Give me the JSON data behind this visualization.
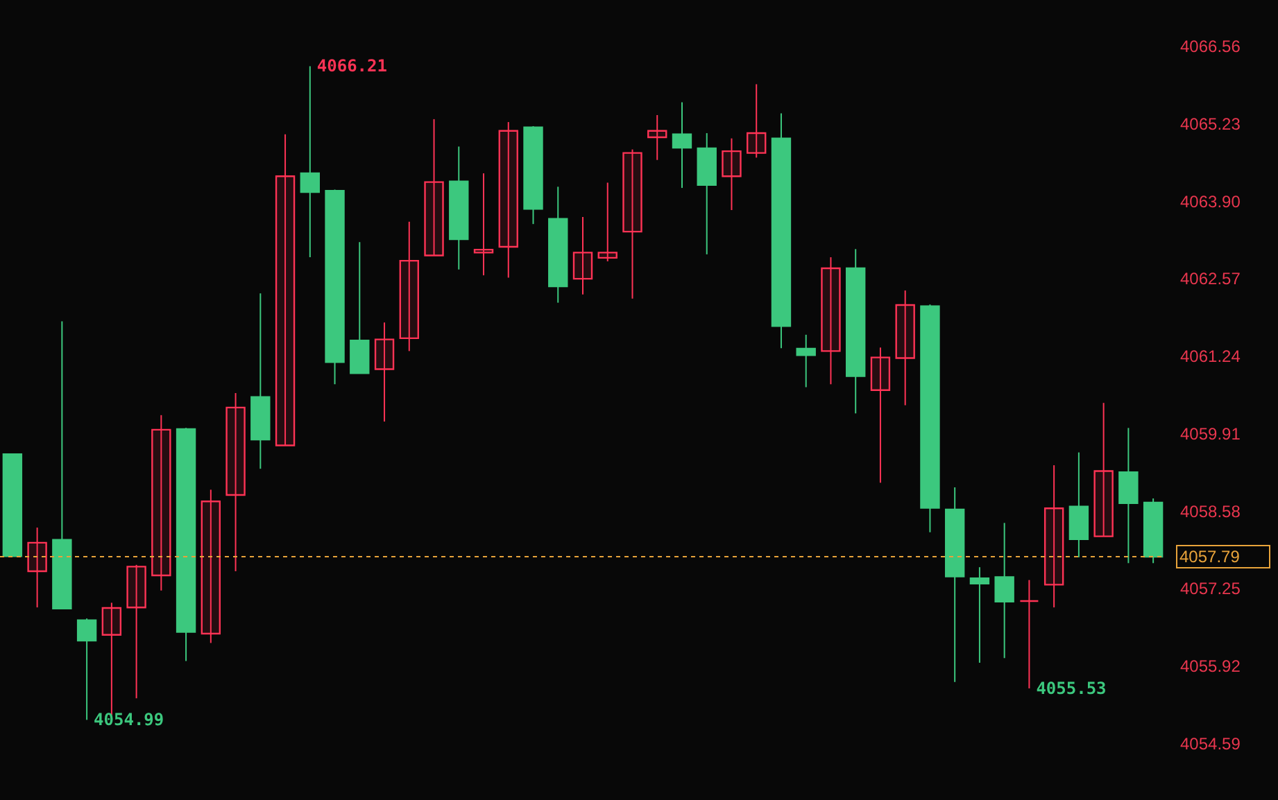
{
  "chart_data": {
    "type": "candlestick",
    "categories": [
      null,
      null,
      null,
      null,
      null,
      null,
      null,
      null,
      null,
      null,
      null,
      null,
      null,
      null,
      null,
      null,
      null,
      null,
      null,
      null,
      null,
      null,
      null,
      null,
      null,
      null,
      null,
      null,
      null,
      null,
      null,
      null,
      null,
      null,
      null,
      null,
      null,
      null,
      null,
      null,
      null,
      null,
      null,
      null,
      null,
      null,
      null
    ],
    "ohlc": [
      [
        4059.55,
        4059.55,
        4057.8,
        4057.8
      ],
      [
        4057.54,
        4058.29,
        4056.92,
        4058.03
      ],
      [
        4058.08,
        4061.83,
        4056.9,
        4056.9
      ],
      [
        4056.7,
        4056.73,
        4054.99,
        4056.35
      ],
      [
        4056.45,
        4057.0,
        4055.07,
        4056.91
      ],
      [
        4056.92,
        4057.65,
        4055.36,
        4057.62
      ],
      [
        4057.47,
        4060.22,
        4057.21,
        4059.97
      ],
      [
        4059.98,
        4060.0,
        4056.0,
        4056.5
      ],
      [
        4056.47,
        4058.94,
        4056.31,
        4058.74
      ],
      [
        4058.85,
        4060.6,
        4057.54,
        4060.35
      ],
      [
        4060.53,
        4062.31,
        4059.3,
        4059.8
      ],
      [
        4059.7,
        4065.04,
        4059.7,
        4064.32
      ],
      [
        4064.37,
        4066.21,
        4062.93,
        4064.05
      ],
      [
        4064.07,
        4064.09,
        4060.75,
        4061.13
      ],
      [
        4061.5,
        4063.19,
        4060.94,
        4060.94
      ],
      [
        4061.01,
        4061.81,
        4060.11,
        4061.52
      ],
      [
        4061.54,
        4063.54,
        4061.32,
        4062.87
      ],
      [
        4062.96,
        4065.3,
        4062.96,
        4064.22
      ],
      [
        4064.23,
        4064.83,
        4062.72,
        4063.24
      ],
      [
        4063.01,
        4064.37,
        4062.62,
        4063.06
      ],
      [
        4063.11,
        4065.25,
        4062.58,
        4065.1
      ],
      [
        4065.16,
        4065.18,
        4063.5,
        4063.76
      ],
      [
        4063.59,
        4064.14,
        4062.15,
        4062.43
      ],
      [
        4062.56,
        4063.62,
        4062.29,
        4063.01
      ],
      [
        4062.92,
        4064.21,
        4062.86,
        4063.01
      ],
      [
        4063.37,
        4064.78,
        4062.22,
        4064.72
      ],
      [
        4064.99,
        4065.37,
        4064.6,
        4065.1
      ],
      [
        4065.04,
        4065.59,
        4064.12,
        4064.81
      ],
      [
        4064.8,
        4065.06,
        4062.98,
        4064.17
      ],
      [
        4064.32,
        4064.97,
        4063.74,
        4064.75
      ],
      [
        4064.72,
        4065.9,
        4064.64,
        4065.06
      ],
      [
        4064.97,
        4065.4,
        4061.37,
        4061.75
      ],
      [
        4061.36,
        4061.6,
        4060.7,
        4061.25
      ],
      [
        4061.32,
        4062.93,
        4060.75,
        4062.74
      ],
      [
        4062.74,
        4063.07,
        4060.25,
        4060.89
      ],
      [
        4060.65,
        4061.38,
        4059.06,
        4061.21
      ],
      [
        4061.2,
        4062.36,
        4060.39,
        4062.11
      ],
      [
        4062.09,
        4062.12,
        4058.21,
        4058.63
      ],
      [
        4058.6,
        4058.98,
        4055.64,
        4057.45
      ],
      [
        4057.42,
        4057.61,
        4055.97,
        4057.33
      ],
      [
        4057.44,
        4058.37,
        4056.05,
        4057.02
      ],
      [
        4057.03,
        4057.39,
        4055.53,
        4057.03
      ],
      [
        4057.31,
        4059.36,
        4056.92,
        4058.62
      ],
      [
        4058.65,
        4059.58,
        4057.78,
        4058.09
      ],
      [
        4058.14,
        4060.43,
        4058.14,
        4059.26
      ],
      [
        4059.24,
        4060.0,
        4057.68,
        4058.71
      ],
      [
        4058.72,
        4058.79,
        4057.68,
        4057.79
      ]
    ],
    "colors": [
      "#3cc87e",
      "#ff3355",
      "#3cc87e",
      "#3cc87e",
      "#ff3355",
      "#ff3355",
      "#ff3355",
      "#3cc87e",
      "#ff3355",
      "#ff3355",
      "#3cc87e",
      "#ff3355",
      "#3cc87e",
      "#3cc87e",
      "#3cc87e",
      "#ff3355",
      "#ff3355",
      "#ff3355",
      "#3cc87e",
      "#ff3355",
      "#ff3355",
      "#3cc87e",
      "#3cc87e",
      "#ff3355",
      "#ff3355",
      "#ff3355",
      "#ff3355",
      "#3cc87e",
      "#3cc87e",
      "#ff3355",
      "#ff3355",
      "#3cc87e",
      "#3cc87e",
      "#ff3355",
      "#3cc87e",
      "#ff3355",
      "#ff3355",
      "#3cc87e",
      "#3cc87e",
      "#3cc87e",
      "#3cc87e",
      "#ff3355",
      "#ff3355",
      "#3cc87e",
      "#ff3355",
      "#3cc87e",
      "#3cc87e"
    ],
    "ylim": [
      4054.59,
      4066.56
    ],
    "yticks": [
      4054.59,
      4055.92,
      4057.25,
      4058.58,
      4059.91,
      4061.24,
      4062.57,
      {
        "value": 4063.9,
        "label": "4063.90"
      },
      4065.23,
      4066.56
    ],
    "ref_lines": [
      {
        "axis": "y",
        "value": 4057.79,
        "label": "4057.79",
        "color": "#e8a33a",
        "line_style": "dashed"
      }
    ],
    "annotations": [
      "4066.21",
      "4054.99",
      "4055.53"
    ],
    "grid": false,
    "tick_labels": "y"
  }
}
